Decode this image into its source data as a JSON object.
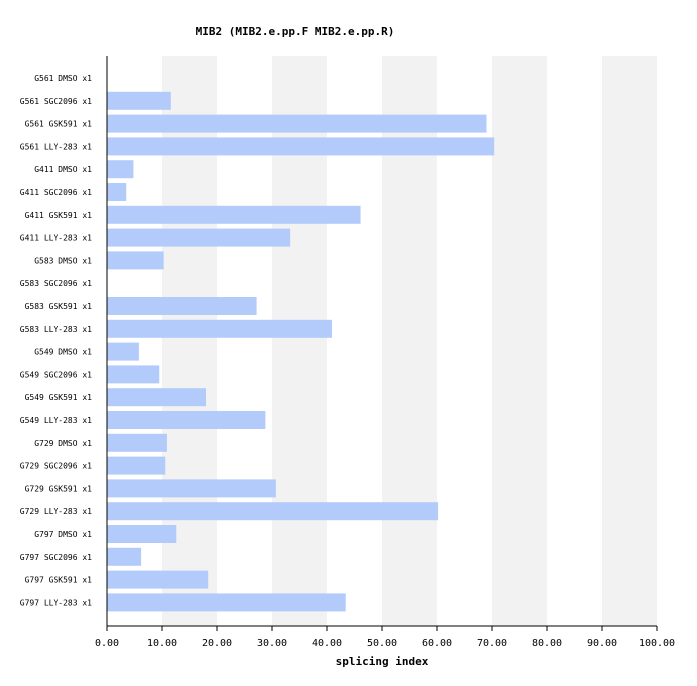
{
  "chart_data": {
    "type": "bar",
    "orientation": "horizontal",
    "title": "MIB2 (MIB2.e.pp.F  MIB2.e.pp.R)",
    "xlabel": "splicing index",
    "ylabel": "",
    "xlim": [
      0,
      100
    ],
    "x_ticks": [
      "0.00",
      "10.00",
      "20.00",
      "30.00",
      "40.00",
      "50.00",
      "60.00",
      "70.00",
      "80.00",
      "90.00",
      "100.00"
    ],
    "grid": "alternating vertical bands",
    "bar_color": "#b3cbfa",
    "band_color": "#f2f2f2",
    "categories": [
      "G561 DMSO x1",
      "G561 SGC2096 x1",
      "G561 GSK591 x1",
      "G561 LLY-283 x1",
      "G411 DMSO x1",
      "G411 SGC2096 x1",
      "G411 GSK591 x1",
      "G411 LLY-283 x1",
      "G583 DMSO x1",
      "G583 SGC2096 x1",
      "G583 GSK591 x1",
      "G583 LLY-283 x1",
      "G549 DMSO x1",
      "G549 SGC2096 x1",
      "G549 GSK591 x1",
      "G549 LLY-283 x1",
      "G729 DMSO x1",
      "G729 SGC2096 x1",
      "G729 GSK591 x1",
      "G729 LLY-283 x1",
      "G797 DMSO x1",
      "G797 SGC2096 x1",
      "G797 GSK591 x1",
      "G797 LLY-283 x1"
    ],
    "values": [
      0,
      11.6,
      69.0,
      70.4,
      4.8,
      3.5,
      46.1,
      33.3,
      10.3,
      0,
      27.2,
      40.9,
      5.8,
      9.5,
      18.0,
      28.8,
      10.9,
      10.6,
      30.7,
      60.2,
      12.6,
      6.2,
      18.4,
      43.4
    ]
  }
}
